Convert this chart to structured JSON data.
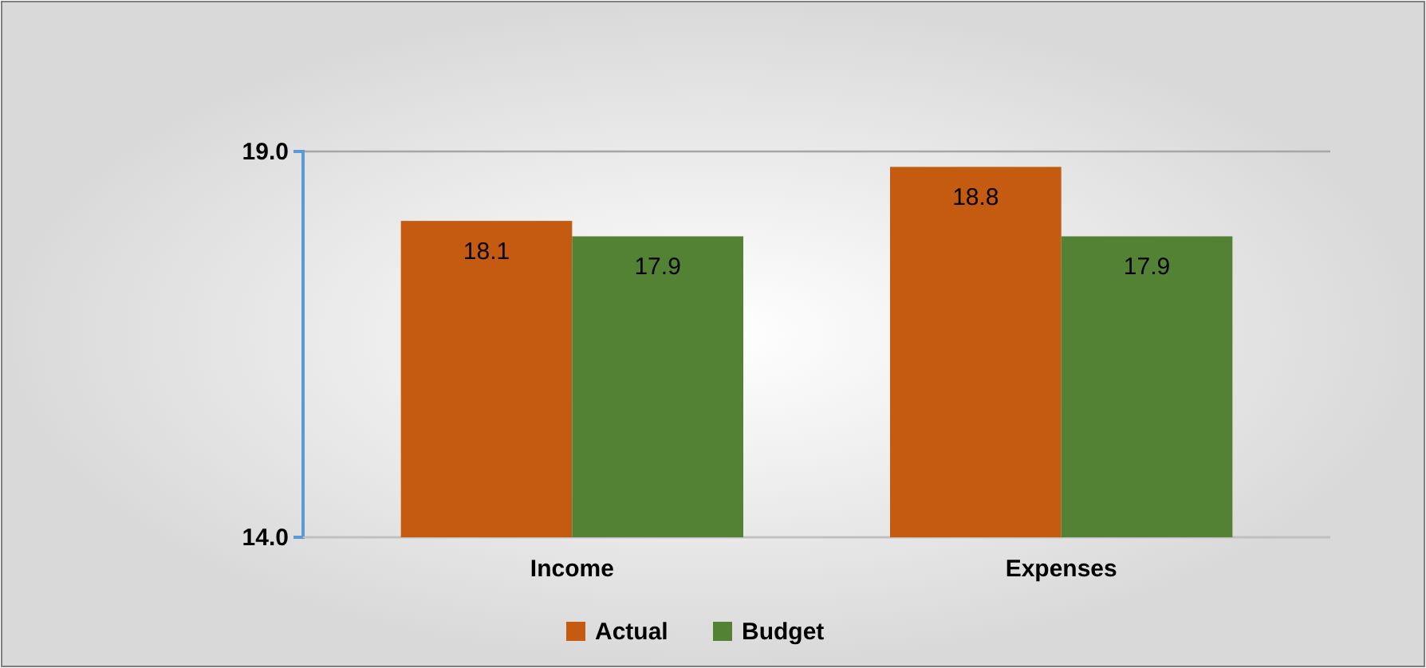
{
  "chart_data": {
    "type": "bar",
    "categories": [
      "Income",
      "Expenses"
    ],
    "series": [
      {
        "name": "Actual",
        "color": "#c55a11",
        "values": [
          18.1,
          18.8
        ]
      },
      {
        "name": "Budget",
        "color": "#548235",
        "values": [
          17.9,
          17.9
        ]
      }
    ],
    "ylim": [
      14,
      19
    ],
    "yticks": [
      {
        "value": 14,
        "label": "14.0"
      },
      {
        "value": 19,
        "label": "19.0"
      }
    ],
    "grid": "y",
    "legend": "bottom",
    "data_labels": true
  }
}
